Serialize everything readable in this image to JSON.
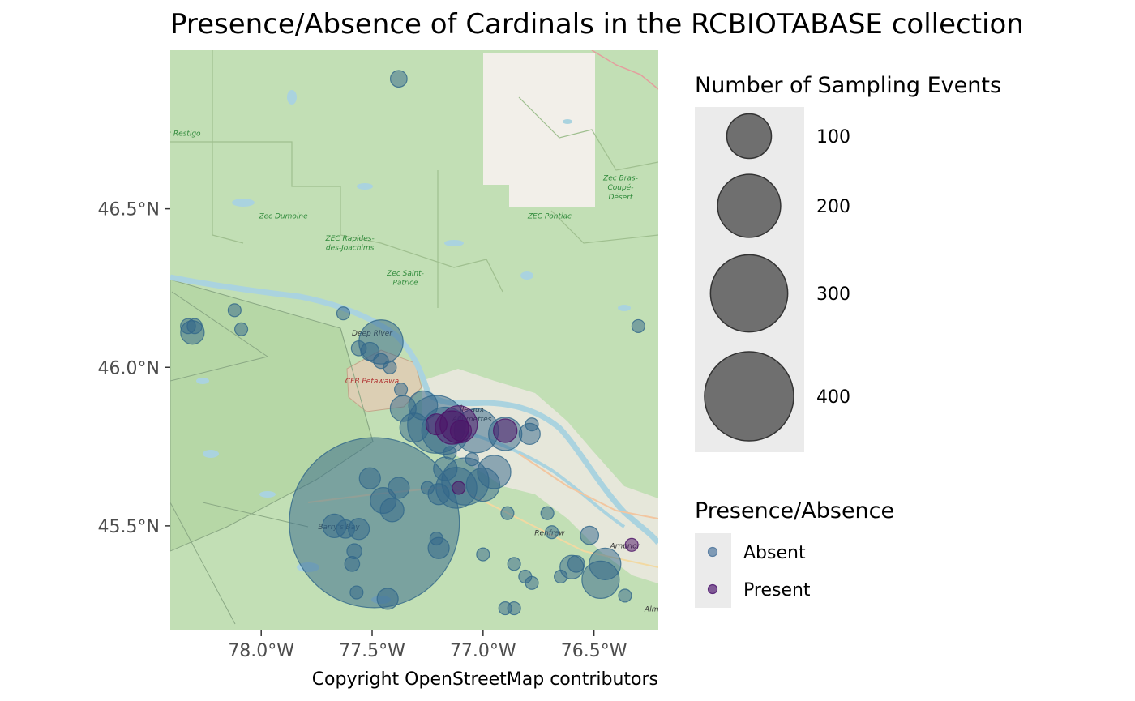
{
  "title": "Presence/Absence of Cardinals in the RCBIOTABASE collection",
  "caption": "Copyright OpenStreetMap contributors",
  "axes": {
    "x_ticks": [
      {
        "value": -78.0,
        "label": "78.0°W"
      },
      {
        "value": -77.5,
        "label": "77.5°W"
      },
      {
        "value": -77.0,
        "label": "77.0°W"
      },
      {
        "value": -76.5,
        "label": "76.5°W"
      }
    ],
    "y_ticks": [
      {
        "value": 46.5,
        "label": "46.5°N"
      },
      {
        "value": 46.0,
        "label": "46.0°N"
      },
      {
        "value": 45.5,
        "label": "45.5°N"
      }
    ],
    "xlim": [
      -78.41,
      -76.21
    ],
    "ylim": [
      45.17,
      47.0
    ]
  },
  "legend_size": {
    "title": "Number of Sampling Events",
    "items": [
      {
        "value": 100,
        "label": "100"
      },
      {
        "value": 200,
        "label": "200"
      },
      {
        "value": 300,
        "label": "300"
      },
      {
        "value": 400,
        "label": "400"
      }
    ]
  },
  "legend_presence": {
    "title": "Presence/Absence",
    "items": [
      {
        "label": "Absent",
        "color": "#5b7fa3"
      },
      {
        "label": "Present",
        "color": "#5c2a7a"
      }
    ]
  },
  "colors": {
    "absent": "#31668a",
    "present": "#4b1266",
    "land": "#c2dfb5",
    "water": "#aad3df",
    "urban": "#f0eee8"
  },
  "map_labels": [
    {
      "text": "Zec Restigo",
      "lon": -78.37,
      "lat": 46.73,
      "color": "#2f8a3a"
    },
    {
      "text": "Zec Dumoine",
      "lon": -77.9,
      "lat": 46.47,
      "color": "#2f8a3a"
    },
    {
      "text": "ZEC Rapides-",
      "lon": -77.6,
      "lat": 46.4,
      "color": "#2f8a3a"
    },
    {
      "text": "des-Joachims",
      "lon": -77.6,
      "lat": 46.37,
      "color": "#2f8a3a"
    },
    {
      "text": "Zec Saint-",
      "lon": -77.35,
      "lat": 46.29,
      "color": "#2f8a3a"
    },
    {
      "text": "Patrice",
      "lon": -77.35,
      "lat": 46.26,
      "color": "#2f8a3a"
    },
    {
      "text": "ZEC Pontiac",
      "lon": -76.7,
      "lat": 46.47,
      "color": "#2f8a3a"
    },
    {
      "text": "Zec Bras-",
      "lon": -76.38,
      "lat": 46.59,
      "color": "#2f8a3a"
    },
    {
      "text": "Coupé-",
      "lon": -76.38,
      "lat": 46.56,
      "color": "#2f8a3a"
    },
    {
      "text": "Désert",
      "lon": -76.38,
      "lat": 46.53,
      "color": "#2f8a3a"
    },
    {
      "text": "Deep River",
      "lon": -77.5,
      "lat": 46.1,
      "color": "#333333"
    },
    {
      "text": "CFB Petawawa",
      "lon": -77.5,
      "lat": 45.95,
      "color": "#b03030"
    },
    {
      "text": "Île aux",
      "lon": -77.05,
      "lat": 45.86,
      "color": "#222222"
    },
    {
      "text": "Allumettes",
      "lon": -77.05,
      "lat": 45.83,
      "color": "#222222"
    },
    {
      "text": "Barry's Bay",
      "lon": -77.65,
      "lat": 45.49,
      "color": "#333333"
    },
    {
      "text": "Renfrew",
      "lon": -76.7,
      "lat": 45.47,
      "color": "#333333"
    },
    {
      "text": "Arnprior",
      "lon": -76.36,
      "lat": 45.43,
      "color": "#333333"
    },
    {
      "text": "Almo",
      "lon": -76.23,
      "lat": 45.23,
      "color": "#333333"
    }
  ],
  "chart_data": {
    "type": "scatter",
    "xlabel": "",
    "ylabel": "",
    "points": [
      {
        "lon": -77.49,
        "lat": 45.51,
        "n": 520,
        "status": "Absent"
      },
      {
        "lon": -77.21,
        "lat": 45.82,
        "n": 60,
        "status": "Absent"
      },
      {
        "lon": -77.17,
        "lat": 45.8,
        "n": 40,
        "status": "Absent"
      },
      {
        "lon": -77.46,
        "lat": 46.08,
        "n": 35,
        "status": "Absent"
      },
      {
        "lon": -77.03,
        "lat": 45.8,
        "n": 35,
        "status": "Absent"
      },
      {
        "lon": -77.08,
        "lat": 45.64,
        "n": 40,
        "status": "Absent"
      },
      {
        "lon": -77.12,
        "lat": 45.62,
        "n": 30,
        "status": "Absent"
      },
      {
        "lon": -77.0,
        "lat": 45.63,
        "n": 20,
        "status": "Absent"
      },
      {
        "lon": -76.95,
        "lat": 45.67,
        "n": 20,
        "status": "Absent"
      },
      {
        "lon": -76.9,
        "lat": 45.79,
        "n": 20,
        "status": "Absent"
      },
      {
        "lon": -77.17,
        "lat": 45.68,
        "n": 10,
        "status": "Absent"
      },
      {
        "lon": -77.27,
        "lat": 45.88,
        "n": 15,
        "status": "Absent"
      },
      {
        "lon": -77.31,
        "lat": 45.81,
        "n": 15,
        "status": "Absent"
      },
      {
        "lon": -77.36,
        "lat": 45.87,
        "n": 12,
        "status": "Absent"
      },
      {
        "lon": -76.45,
        "lat": 45.38,
        "n": 18,
        "status": "Absent"
      },
      {
        "lon": -76.47,
        "lat": 45.33,
        "n": 25,
        "status": "Absent"
      },
      {
        "lon": -76.6,
        "lat": 45.37,
        "n": 10,
        "status": "Absent"
      },
      {
        "lon": -78.31,
        "lat": 46.11,
        "n": 10,
        "status": "Absent"
      },
      {
        "lon": -78.3,
        "lat": 46.13,
        "n": 4,
        "status": "Absent"
      },
      {
        "lon": -78.33,
        "lat": 46.13,
        "n": 4,
        "status": "Absent"
      },
      {
        "lon": -78.12,
        "lat": 46.18,
        "n": 3,
        "status": "Absent"
      },
      {
        "lon": -78.09,
        "lat": 46.12,
        "n": 3,
        "status": "Absent"
      },
      {
        "lon": -77.63,
        "lat": 46.17,
        "n": 3,
        "status": "Absent"
      },
      {
        "lon": -77.56,
        "lat": 46.06,
        "n": 4,
        "status": "Absent"
      },
      {
        "lon": -77.51,
        "lat": 46.05,
        "n": 6,
        "status": "Absent"
      },
      {
        "lon": -77.46,
        "lat": 46.02,
        "n": 4,
        "status": "Absent"
      },
      {
        "lon": -77.42,
        "lat": 46.0,
        "n": 3,
        "status": "Absent"
      },
      {
        "lon": -77.37,
        "lat": 45.93,
        "n": 3,
        "status": "Absent"
      },
      {
        "lon": -77.51,
        "lat": 45.65,
        "n": 8,
        "status": "Absent"
      },
      {
        "lon": -77.45,
        "lat": 45.58,
        "n": 12,
        "status": "Absent"
      },
      {
        "lon": -77.41,
        "lat": 45.55,
        "n": 10,
        "status": "Absent"
      },
      {
        "lon": -77.38,
        "lat": 45.62,
        "n": 8,
        "status": "Absent"
      },
      {
        "lon": -77.56,
        "lat": 45.49,
        "n": 8,
        "status": "Absent"
      },
      {
        "lon": -77.62,
        "lat": 45.49,
        "n": 6,
        "status": "Absent"
      },
      {
        "lon": -77.67,
        "lat": 45.5,
        "n": 10,
        "status": "Absent"
      },
      {
        "lon": -77.58,
        "lat": 45.42,
        "n": 4,
        "status": "Absent"
      },
      {
        "lon": -77.59,
        "lat": 45.38,
        "n": 4,
        "status": "Absent"
      },
      {
        "lon": -77.57,
        "lat": 45.29,
        "n": 3,
        "status": "Absent"
      },
      {
        "lon": -77.43,
        "lat": 45.27,
        "n": 8,
        "status": "Absent"
      },
      {
        "lon": -77.21,
        "lat": 45.46,
        "n": 3,
        "status": "Absent"
      },
      {
        "lon": -77.2,
        "lat": 45.43,
        "n": 8,
        "status": "Absent"
      },
      {
        "lon": -77.2,
        "lat": 45.6,
        "n": 8,
        "status": "Absent"
      },
      {
        "lon": -77.25,
        "lat": 45.62,
        "n": 3,
        "status": "Absent"
      },
      {
        "lon": -77.15,
        "lat": 45.73,
        "n": 3,
        "status": "Absent"
      },
      {
        "lon": -77.05,
        "lat": 45.71,
        "n": 3,
        "status": "Absent"
      },
      {
        "lon": -77.0,
        "lat": 45.41,
        "n": 3,
        "status": "Absent"
      },
      {
        "lon": -76.89,
        "lat": 45.54,
        "n": 3,
        "status": "Absent"
      },
      {
        "lon": -76.86,
        "lat": 45.38,
        "n": 3,
        "status": "Absent"
      },
      {
        "lon": -76.81,
        "lat": 45.34,
        "n": 3,
        "status": "Absent"
      },
      {
        "lon": -76.78,
        "lat": 45.32,
        "n": 3,
        "status": "Absent"
      },
      {
        "lon": -76.65,
        "lat": 45.34,
        "n": 3,
        "status": "Absent"
      },
      {
        "lon": -76.9,
        "lat": 45.24,
        "n": 3,
        "status": "Absent"
      },
      {
        "lon": -76.86,
        "lat": 45.24,
        "n": 3,
        "status": "Absent"
      },
      {
        "lon": -76.71,
        "lat": 45.54,
        "n": 3,
        "status": "Absent"
      },
      {
        "lon": -76.69,
        "lat": 45.48,
        "n": 3,
        "status": "Absent"
      },
      {
        "lon": -76.52,
        "lat": 45.47,
        "n": 6,
        "status": "Absent"
      },
      {
        "lon": -76.36,
        "lat": 45.28,
        "n": 3,
        "status": "Absent"
      },
      {
        "lon": -76.3,
        "lat": 46.13,
        "n": 3,
        "status": "Absent"
      },
      {
        "lon": -77.38,
        "lat": 46.91,
        "n": 5,
        "status": "Absent"
      },
      {
        "lon": -76.79,
        "lat": 45.79,
        "n": 8,
        "status": "Absent"
      },
      {
        "lon": -76.78,
        "lat": 45.82,
        "n": 3,
        "status": "Absent"
      },
      {
        "lon": -76.58,
        "lat": 45.38,
        "n": 5,
        "status": "Absent"
      },
      {
        "lon": -77.11,
        "lat": 45.82,
        "n": 25,
        "status": "Present"
      },
      {
        "lon": -77.14,
        "lat": 45.81,
        "n": 20,
        "status": "Present"
      },
      {
        "lon": -77.21,
        "lat": 45.82,
        "n": 8,
        "status": "Present"
      },
      {
        "lon": -77.1,
        "lat": 45.8,
        "n": 8,
        "status": "Present"
      },
      {
        "lon": -76.9,
        "lat": 45.8,
        "n": 10,
        "status": "Present"
      },
      {
        "lon": -77.11,
        "lat": 45.62,
        "n": 3,
        "status": "Present"
      },
      {
        "lon": -76.33,
        "lat": 45.44,
        "n": 3,
        "status": "Present"
      }
    ]
  }
}
